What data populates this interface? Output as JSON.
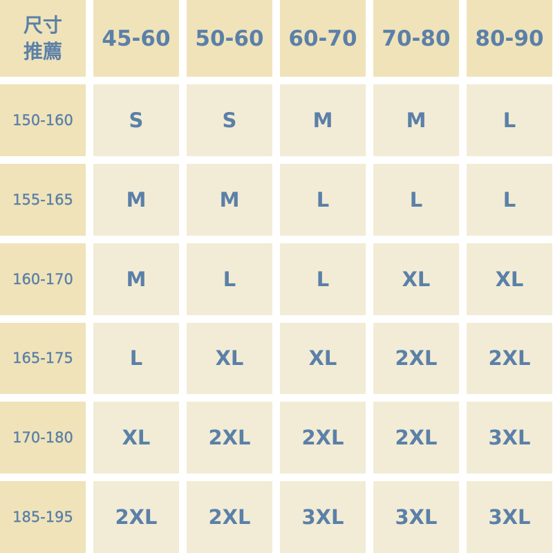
{
  "corner": {
    "line1": "尺寸",
    "line2": "推薦"
  },
  "weight_headers": [
    "45-60",
    "50-60",
    "60-70",
    "70-80",
    "80-90"
  ],
  "rows": [
    {
      "height": "150-160",
      "sizes": [
        "S",
        "S",
        "M",
        "M",
        "L"
      ]
    },
    {
      "height": "155-165",
      "sizes": [
        "M",
        "M",
        "L",
        "L",
        "L"
      ]
    },
    {
      "height": "160-170",
      "sizes": [
        "M",
        "L",
        "L",
        "XL",
        "XL"
      ]
    },
    {
      "height": "165-175",
      "sizes": [
        "L",
        "XL",
        "XL",
        "2XL",
        "2XL"
      ]
    },
    {
      "height": "170-180",
      "sizes": [
        "XL",
        "2XL",
        "2XL",
        "2XL",
        "3XL"
      ]
    },
    {
      "height": "185-195",
      "sizes": [
        "2XL",
        "2XL",
        "3XL",
        "3XL",
        "3XL"
      ]
    }
  ],
  "colors": {
    "header_bg": "#f0e3b9",
    "cell_bg": "#f2ecd6",
    "text": "#5b80a8"
  }
}
